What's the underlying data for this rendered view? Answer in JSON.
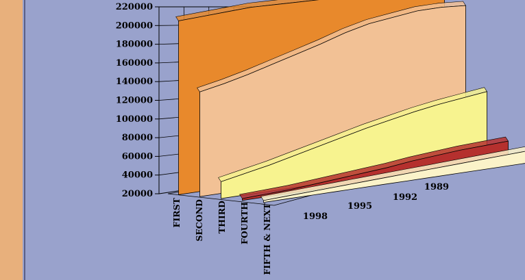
{
  "colors": {
    "background": "#99a2cc",
    "side_panel": "#e8b07c",
    "grid": "#000000"
  },
  "chart_data": {
    "type": "area",
    "subtype": "3d-ribbon",
    "title": "",
    "xlabel": "",
    "ylabel": "",
    "grid": true,
    "legend": "none",
    "ylim": [
      20000,
      220000
    ],
    "y_ticks": [
      20000,
      40000,
      60000,
      80000,
      100000,
      120000,
      140000,
      160000,
      180000,
      200000,
      220000
    ],
    "x": [
      1989,
      1990,
      1991,
      1992,
      1993,
      1994,
      1995,
      1996,
      1997,
      1998,
      1999,
      2000
    ],
    "x_tick_labels": [
      "1989",
      "1992",
      "1995",
      "1998"
    ],
    "series_labels": [
      "FIRST",
      "SECOND",
      "THIRD",
      "FOURTH",
      "FIFTH & NEXT"
    ],
    "series": [
      {
        "label": "FIRST",
        "color": "#e8892c",
        "values": [
          190000,
          194000,
          198000,
          201000,
          204000,
          206000,
          207000,
          208000,
          209000,
          208000,
          207000,
          206000
        ]
      },
      {
        "label": "SECOND",
        "color": "#f2c195",
        "values": [
          182000,
          184000,
          184000,
          181000,
          178000,
          172000,
          164000,
          157000,
          150000,
          143000,
          137000,
          132000
        ]
      },
      {
        "label": "THIRD",
        "color": "#f7f38f",
        "values": [
          92000,
          89000,
          86000,
          82000,
          77000,
          72000,
          66000,
          60000,
          54000,
          48000,
          43000,
          38000
        ]
      },
      {
        "label": "FOURTH",
        "color": "#b5302e",
        "values": [
          41000,
          40000,
          39000,
          37000,
          35000,
          32000,
          30000,
          28000,
          26000,
          24000,
          23000,
          22000
        ]
      },
      {
        "label": "FIFTH & NEXT",
        "color": "#fbf3c9",
        "values": [
          33000,
          32000,
          31000,
          30000,
          29000,
          28000,
          27000,
          26000,
          25000,
          24000,
          23000,
          22000
        ]
      }
    ]
  }
}
